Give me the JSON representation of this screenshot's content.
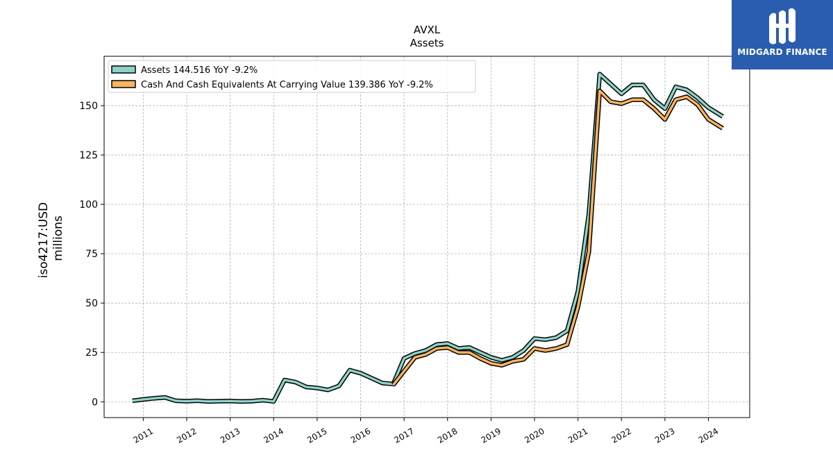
{
  "brand": {
    "name": "MIDGARD FINANCE",
    "color": "#2a5db0"
  },
  "chart_data": {
    "type": "line",
    "title": "AVXL",
    "subtitle": "Assets",
    "xlabel": "",
    "ylabel_line1": "iso4217:USD",
    "ylabel_line2": "millions",
    "xlim": [
      2010.1,
      2024.95
    ],
    "ylim": [
      -8,
      175
    ],
    "yticks": [
      0,
      25,
      50,
      75,
      100,
      125,
      150
    ],
    "xticks": [
      2011,
      2012,
      2013,
      2014,
      2015,
      2016,
      2017,
      2018,
      2019,
      2020,
      2021,
      2022,
      2023,
      2024
    ],
    "grid": true,
    "legend_position": "top-left",
    "series": [
      {
        "name": "Assets  144.516 YoY -9.2%",
        "color": "#8dd3c7",
        "x": [
          2010.75,
          2011.0,
          2011.25,
          2011.5,
          2011.75,
          2012.0,
          2012.25,
          2012.5,
          2012.75,
          2013.0,
          2013.25,
          2013.5,
          2013.75,
          2014.0,
          2014.25,
          2014.5,
          2014.75,
          2015.0,
          2015.25,
          2015.5,
          2015.75,
          2016.0,
          2016.25,
          2016.5,
          2016.75,
          2017.0,
          2017.25,
          2017.5,
          2017.75,
          2018.0,
          2018.25,
          2018.5,
          2018.75,
          2019.0,
          2019.25,
          2019.5,
          2019.75,
          2020.0,
          2020.25,
          2020.5,
          2020.75,
          2021.0,
          2021.25,
          2021.5,
          2021.75,
          2022.0,
          2022.25,
          2022.5,
          2022.75,
          2023.0,
          2023.25,
          2023.5,
          2023.75,
          2024.0,
          2024.33
        ],
        "values": [
          0.5,
          1.2,
          1.8,
          2.2,
          0.5,
          0.3,
          0.5,
          0.2,
          0.3,
          0.4,
          0.2,
          0.3,
          0.8,
          0.2,
          11,
          10,
          7.5,
          7,
          6,
          8,
          16,
          14.5,
          12,
          9.5,
          9,
          22,
          24.5,
          26,
          29,
          29.5,
          27,
          27.5,
          25,
          22.5,
          21,
          22.5,
          26,
          32,
          31.5,
          32.5,
          36,
          56,
          95,
          166,
          161,
          156,
          160.5,
          160.5,
          153,
          148.5,
          159.5,
          158,
          154,
          149,
          144.5
        ]
      },
      {
        "name": "Cash And Cash Equivalents At Carrying Value  139.386 YoY -9.2%",
        "color": "#fdb462",
        "x": [
          2016.75,
          2017.0,
          2017.25,
          2017.5,
          2017.75,
          2018.0,
          2018.25,
          2018.5,
          2018.75,
          2019.0,
          2019.25,
          2019.5,
          2019.75,
          2020.0,
          2020.25,
          2020.5,
          2020.75,
          2021.0,
          2021.25,
          2021.5,
          2021.75,
          2022.0,
          2022.25,
          2022.5,
          2022.75,
          2023.0,
          2023.25,
          2023.5,
          2023.75,
          2024.0,
          2024.33
        ],
        "values": [
          8.5,
          15.5,
          22.5,
          24,
          27,
          27.5,
          25,
          25,
          22,
          19.5,
          18.5,
          20.5,
          21.5,
          27,
          26,
          27,
          29,
          48,
          76,
          157.5,
          152,
          151,
          153,
          153,
          148.5,
          143,
          153,
          154.5,
          150.5,
          143,
          138.5
        ]
      }
    ]
  }
}
